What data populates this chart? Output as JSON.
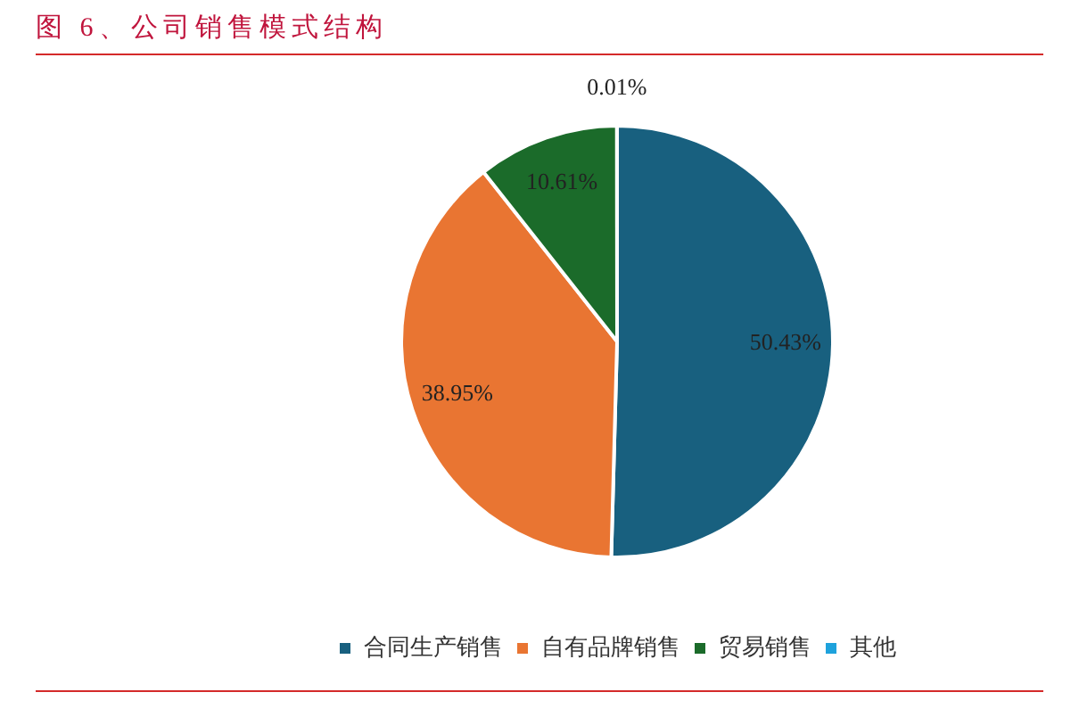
{
  "chart_data": {
    "type": "pie",
    "title": "图 6、公司销售模式结构",
    "categories": [
      "合同生产销售",
      "自有品牌销售",
      "贸易销售",
      "其他"
    ],
    "values": [
      50.43,
      38.95,
      10.61,
      0.01
    ],
    "colors": [
      "#18607f",
      "#e97532",
      "#1b6b2a",
      "#1ea2dc"
    ],
    "value_labels": [
      "50.43%",
      "38.95%",
      "10.61%",
      "0.01%"
    ],
    "legend": "bottom"
  }
}
